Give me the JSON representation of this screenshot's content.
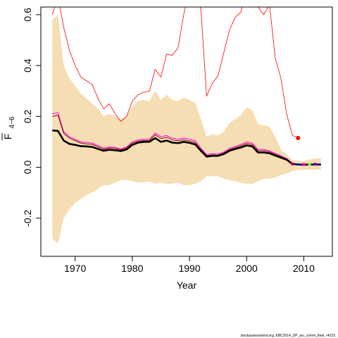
{
  "chart_data": {
    "type": "line",
    "xlabel": "Year",
    "ylabel": "F",
    "ylabel_sub": "4−6",
    "xlim": [
      1964,
      2015
    ],
    "ylim": [
      -0.35,
      0.63
    ],
    "x_ticks": [
      1970,
      1980,
      1990,
      2000,
      2010
    ],
    "x_tick_labels": [
      "1970",
      "1980",
      "1990",
      "2000",
      "2010"
    ],
    "y_ticks": [
      -0.2,
      0.0,
      0.2,
      0.4,
      0.6
    ],
    "y_tick_labels": [
      "-0.2",
      "0.0",
      "0.2",
      "0.4",
      "0.6"
    ],
    "grid": false,
    "colors": {
      "band": "#f5deb3",
      "red": "#ff0000",
      "magenta": "#ff00ff",
      "black": "#000000",
      "dark_red": "#8b0000",
      "blue": "#0000ff",
      "green": "#7cfc00",
      "dot_red": "#ff0000",
      "dot_magenta": "#ff00aa",
      "dot_purple": "#8800aa"
    },
    "band": {
      "x": [
        1966,
        1967,
        1968,
        1969,
        1970,
        1971,
        1972,
        1973,
        1974,
        1975,
        1976,
        1977,
        1978,
        1979,
        1980,
        1981,
        1982,
        1983,
        1984,
        1985,
        1986,
        1987,
        1988,
        1989,
        1990,
        1991,
        1992,
        1993,
        1994,
        1995,
        1996,
        1997,
        1998,
        1999,
        2000,
        2001,
        2002,
        2003,
        2004,
        2005,
        2006,
        2007,
        2008,
        2009,
        2010,
        2011,
        2012,
        2013
      ],
      "upper": [
        0.58,
        0.6,
        0.4,
        0.35,
        0.32,
        0.29,
        0.27,
        0.25,
        0.23,
        0.2,
        0.21,
        0.2,
        0.19,
        0.2,
        0.24,
        0.26,
        0.265,
        0.26,
        0.3,
        0.265,
        0.285,
        0.265,
        0.26,
        0.275,
        0.265,
        0.255,
        0.19,
        0.12,
        0.13,
        0.125,
        0.14,
        0.175,
        0.19,
        0.205,
        0.235,
        0.225,
        0.17,
        0.165,
        0.16,
        0.12,
        0.07,
        0.05,
        0.03,
        0.025,
        0.025,
        0.03,
        0.035,
        0.035
      ],
      "lower": [
        -0.28,
        -0.3,
        -0.2,
        -0.165,
        -0.14,
        -0.125,
        -0.11,
        -0.1,
        -0.085,
        -0.07,
        -0.07,
        -0.06,
        -0.05,
        -0.05,
        -0.055,
        -0.06,
        -0.06,
        -0.055,
        -0.065,
        -0.06,
        -0.065,
        -0.065,
        -0.06,
        -0.07,
        -0.07,
        -0.065,
        -0.055,
        -0.035,
        -0.035,
        -0.035,
        -0.045,
        -0.05,
        -0.055,
        -0.06,
        -0.065,
        -0.065,
        -0.055,
        -0.045,
        -0.045,
        -0.04,
        -0.03,
        -0.025,
        -0.015,
        -0.01,
        -0.01,
        -0.01,
        -0.01,
        -0.01
      ]
    },
    "series": [
      {
        "color": "#ff0000",
        "width": 0.8,
        "x": [
          1966,
          1967,
          1968,
          1969,
          1970,
          1971,
          1972,
          1973,
          1974,
          1975,
          1976,
          1977,
          1978,
          1979,
          1980,
          1981,
          1982,
          1983,
          1984,
          1985,
          1986,
          1987,
          1988,
          1989,
          1990,
          1991,
          1992,
          1993,
          1994,
          1995,
          1996,
          1997,
          1998,
          1999,
          2000,
          2001,
          2002,
          2003,
          2004,
          2005,
          2006,
          2007,
          2008,
          2009
        ],
        "values": [
          0.6,
          0.67,
          0.55,
          0.46,
          0.4,
          0.355,
          0.34,
          0.325,
          0.27,
          0.23,
          0.25,
          0.21,
          0.18,
          0.2,
          0.26,
          0.285,
          0.295,
          0.3,
          0.385,
          0.355,
          0.445,
          0.44,
          0.47,
          0.6,
          0.7,
          0.69,
          0.62,
          0.28,
          0.33,
          0.36,
          0.45,
          0.54,
          0.59,
          0.61,
          0.7,
          0.7,
          0.63,
          0.6,
          0.64,
          0.43,
          0.35,
          0.21,
          0.125,
          0.115
        ]
      },
      {
        "color": "#ff00ff",
        "width": 1,
        "x": [
          1966,
          1967,
          1968,
          1969,
          1970,
          1971,
          1972,
          1973,
          1974,
          1975,
          1976,
          1977,
          1978,
          1979,
          1980,
          1981,
          1982,
          1983,
          1984,
          1985,
          1986,
          1987,
          1988,
          1989,
          1990,
          1991,
          1992,
          1993,
          1994,
          1995,
          1996,
          1997,
          1998,
          1999,
          2000,
          2001,
          2002,
          2003,
          2004,
          2005,
          2006,
          2007,
          2008,
          2009,
          2010,
          2011,
          2012,
          2013
        ],
        "values": [
          0.21,
          0.215,
          0.14,
          0.12,
          0.11,
          0.1,
          0.098,
          0.095,
          0.085,
          0.075,
          0.08,
          0.078,
          0.072,
          0.08,
          0.1,
          0.108,
          0.11,
          0.11,
          0.135,
          0.12,
          0.125,
          0.115,
          0.11,
          0.115,
          0.11,
          0.105,
          0.075,
          0.05,
          0.053,
          0.052,
          0.06,
          0.075,
          0.082,
          0.09,
          0.1,
          0.095,
          0.07,
          0.07,
          0.065,
          0.055,
          0.045,
          0.035,
          0.015,
          0.013,
          0.012,
          0.012,
          0.012,
          0.012
        ]
      },
      {
        "color": "#8b0000",
        "width": 1,
        "x": [
          1966,
          1967,
          1968,
          1969,
          1970,
          1971,
          1972,
          1973,
          1974,
          1975,
          1976,
          1977,
          1978,
          1979,
          1980,
          1981,
          1982,
          1983,
          1984,
          1985,
          1986,
          1987,
          1988,
          1989,
          1990,
          1991,
          1992,
          1993,
          1994,
          1995,
          1996,
          1997,
          1998,
          1999,
          2000,
          2001,
          2002,
          2003,
          2004,
          2005,
          2006,
          2007,
          2008,
          2009,
          2010,
          2011,
          2012,
          2013
        ],
        "values": [
          0.2,
          0.205,
          0.133,
          0.115,
          0.105,
          0.095,
          0.092,
          0.09,
          0.08,
          0.071,
          0.076,
          0.074,
          0.069,
          0.076,
          0.095,
          0.103,
          0.105,
          0.105,
          0.128,
          0.113,
          0.118,
          0.108,
          0.104,
          0.108,
          0.103,
          0.098,
          0.07,
          0.046,
          0.049,
          0.048,
          0.056,
          0.07,
          0.077,
          0.085,
          0.094,
          0.089,
          0.065,
          0.065,
          0.061,
          0.051,
          0.042,
          0.032,
          0.014,
          0.012,
          0.011,
          0.011,
          0.011,
          0.011
        ]
      },
      {
        "color": "#000000",
        "width": 2.6,
        "x": [
          1966,
          1967,
          1968,
          1969,
          1970,
          1971,
          1972,
          1973,
          1974,
          1975,
          1976,
          1977,
          1978,
          1979,
          1980,
          1981,
          1982,
          1983,
          1984,
          1985,
          1986,
          1987,
          1988,
          1989,
          1990,
          1991,
          1992,
          1993,
          1994,
          1995,
          1996,
          1997,
          1998,
          1999,
          2000,
          2001,
          2002,
          2003,
          2004,
          2005,
          2006,
          2007,
          2008,
          2009,
          2010,
          2011,
          2012,
          2013
        ],
        "values": [
          0.145,
          0.143,
          0.105,
          0.092,
          0.088,
          0.083,
          0.082,
          0.08,
          0.072,
          0.065,
          0.069,
          0.067,
          0.064,
          0.07,
          0.088,
          0.097,
          0.1,
          0.1,
          0.115,
          0.1,
          0.105,
          0.097,
          0.095,
          0.1,
          0.096,
          0.09,
          0.065,
          0.042,
          0.045,
          0.045,
          0.052,
          0.065,
          0.072,
          0.078,
          0.086,
          0.082,
          0.058,
          0.058,
          0.055,
          0.046,
          0.038,
          0.03,
          0.013,
          0.011,
          0.01,
          0.011,
          0.011,
          0.011
        ]
      },
      {
        "color": "#0000ff",
        "width": 1,
        "x": [
          2008,
          2009,
          2010,
          2011,
          2012,
          2013
        ],
        "values": [
          0.013,
          0.011,
          0.01,
          0.011,
          0.012,
          0.012
        ]
      }
    ],
    "points": [
      {
        "x": 2009,
        "y": 0.115,
        "color": "#ff0000",
        "r": 3
      },
      {
        "x": 2008,
        "y": 0.013,
        "color": "#aa0066",
        "r": 2.2
      },
      {
        "x": 2010,
        "y": 0.011,
        "color": "#ff00aa",
        "r": 2.2
      },
      {
        "x": 2011,
        "y": 0.011,
        "color": "#7cfc00",
        "r": 2.2
      },
      {
        "x": 2012,
        "y": 0.012,
        "color": "#8800aa",
        "r": 2.2
      }
    ]
  },
  "footer": {
    "credit": "stockassessment.org, EBC2014_DP_wo_comm_fleet, r4315"
  }
}
